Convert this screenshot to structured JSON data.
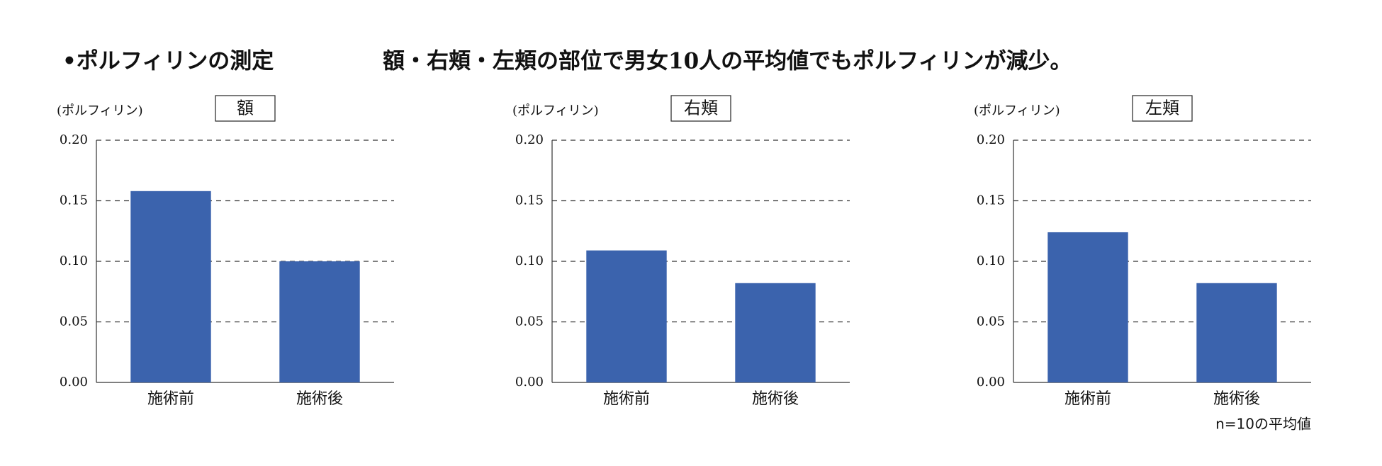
{
  "header": {
    "left": "•ポルフィリンの測定",
    "right": "額・右頬・左頬の部位で男女10人の平均値でもポルフィリンが減少。"
  },
  "note": "n=10の平均値",
  "chart_data": [
    {
      "type": "bar",
      "title": "額",
      "ylabel": "(ポルフィリン)",
      "categories": [
        "施術前",
        "施術後"
      ],
      "values": [
        0.158,
        0.1
      ],
      "color": "#3b63ad",
      "ylim": [
        0,
        0.2
      ],
      "yticks": [
        {
          "value": 0,
          "label": "0.00"
        },
        {
          "value": 0.05,
          "label": "0.05"
        },
        {
          "value": 0.1,
          "label": "0.10"
        },
        {
          "value": 0.15,
          "label": "0.15"
        },
        {
          "value": 0.2,
          "label": "0.20"
        }
      ],
      "grid": true
    },
    {
      "type": "bar",
      "title": "右頬",
      "ylabel": "(ポルフィリン)",
      "categories": [
        "施術前",
        "施術後"
      ],
      "values": [
        0.109,
        0.082
      ],
      "color": "#3b63ad",
      "ylim": [
        0,
        0.2
      ],
      "yticks": [
        {
          "value": 0,
          "label": "0.00"
        },
        {
          "value": 0.05,
          "label": "0.05"
        },
        {
          "value": 0.1,
          "label": "0.10"
        },
        {
          "value": 0.15,
          "label": "0.15"
        },
        {
          "value": 0.2,
          "label": "0.20"
        }
      ],
      "grid": true
    },
    {
      "type": "bar",
      "title": "左頬",
      "ylabel": "(ポルフィリン)",
      "categories": [
        "施術前",
        "施術後"
      ],
      "values": [
        0.124,
        0.082
      ],
      "color": "#3b63ad",
      "ylim": [
        0,
        0.2
      ],
      "yticks": [
        {
          "value": 0,
          "label": "0.00"
        },
        {
          "value": 0.05,
          "label": "0.05"
        },
        {
          "value": 0.1,
          "label": "0.10"
        },
        {
          "value": 0.15,
          "label": "0.15"
        },
        {
          "value": 0.2,
          "label": "0.20"
        }
      ],
      "grid": true
    }
  ]
}
